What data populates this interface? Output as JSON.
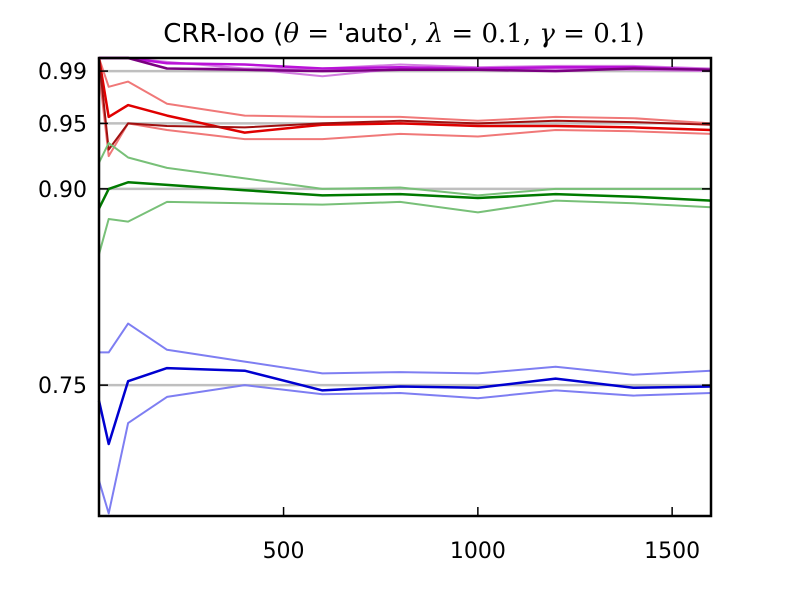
{
  "chart_data": {
    "type": "line",
    "title": {
      "prefix": "CRR-loo (",
      "theta": "θ",
      "eq1": " = ",
      "auto": "'auto'",
      "comma1": ", ",
      "lambda": "λ",
      "eq2": " = ",
      "lambda_value": "0.1",
      "comma2": ", ",
      "gamma": "γ",
      "eq3": " = ",
      "gamma_value": "0.1",
      "suffix": ")"
    },
    "xlabel": "",
    "ylabel": "",
    "xlim": [
      25,
      1600
    ],
    "ylim": [
      0.65,
      1.0
    ],
    "x_ticks": [
      500,
      1000,
      1500
    ],
    "y_ticks": [
      0.75,
      0.9,
      0.95,
      0.99
    ],
    "y_tick_labels": [
      "0.75",
      "0.90",
      "0.95",
      "0.99"
    ],
    "reference_lines": [
      0.75,
      0.9,
      0.95,
      0.99
    ],
    "colors": {
      "reference": "#bfbfbf",
      "magenta": "#ba11d8",
      "magenta_band": "#d27ce0",
      "purple": "#7a0080",
      "red": "#e00000",
      "red_band": "#f07878",
      "red_dark": "#a01010",
      "green": "#007a00",
      "green_band": "#78c078",
      "blue": "#0000d0",
      "blue_band": "#7e7ef2"
    },
    "x": [
      25,
      50,
      100,
      200,
      400,
      600,
      800,
      1000,
      1200,
      1400,
      1600
    ],
    "series": [
      {
        "color": "magenta_band",
        "width": 2,
        "values": [
          1.0,
          1.0,
          1.0,
          0.992,
          0.992,
          0.986,
          0.992,
          0.991,
          0.992,
          0.991,
          0.99
        ]
      },
      {
        "color": "magenta_band",
        "width": 2,
        "values": [
          1.0,
          1.0,
          1.0,
          0.997,
          0.992,
          0.992,
          0.995,
          0.993,
          0.994,
          0.994,
          0.992
        ]
      },
      {
        "color": "magenta",
        "width": 2.5,
        "values": [
          1.0,
          1.0,
          1.0,
          0.996,
          0.995,
          0.992,
          0.993,
          0.992,
          0.993,
          0.993,
          0.991
        ]
      },
      {
        "color": "purple",
        "width": 2.5,
        "values": [
          1.0,
          1.0,
          1.0,
          0.992,
          0.991,
          0.99,
          0.991,
          0.991,
          0.99,
          0.992,
          0.991
        ]
      },
      {
        "color": "red_band",
        "width": 2,
        "values": [
          1.0,
          0.978,
          0.982,
          0.965,
          0.956,
          0.955,
          0.955,
          0.952,
          0.955,
          0.954,
          0.95
        ]
      },
      {
        "color": "red_band",
        "width": 2,
        "values": [
          0.99,
          0.925,
          0.95,
          0.945,
          0.938,
          0.938,
          0.942,
          0.94,
          0.945,
          0.944,
          0.942
        ]
      },
      {
        "color": "red",
        "width": 2.5,
        "values": [
          1.0,
          0.955,
          0.964,
          0.956,
          0.943,
          0.949,
          0.95,
          0.948,
          0.948,
          0.947,
          0.945
        ]
      },
      {
        "color": "red_dark",
        "width": 2,
        "values": [
          1.0,
          0.93,
          0.95,
          0.948,
          0.947,
          0.95,
          0.952,
          0.95,
          0.952,
          0.951,
          0.949
        ]
      },
      {
        "color": "green_band",
        "width": 2,
        "values": [
          0.92,
          0.935,
          0.924,
          0.916,
          0.908,
          0.9,
          0.901,
          0.895,
          0.9,
          0.9,
          0.9
        ]
      },
      {
        "color": "green_band",
        "width": 2,
        "values": [
          0.85,
          0.877,
          0.875,
          0.89,
          0.889,
          0.888,
          0.89,
          0.882,
          0.891,
          0.889,
          0.886
        ]
      },
      {
        "color": "green",
        "width": 2.5,
        "values": [
          0.885,
          0.9,
          0.905,
          0.903,
          0.899,
          0.895,
          0.896,
          0.893,
          0.896,
          0.894,
          0.891
        ]
      },
      {
        "color": "blue_band",
        "width": 2,
        "values": [
          0.775,
          0.775,
          0.797,
          0.777,
          0.768,
          0.759,
          0.76,
          0.759,
          0.764,
          0.758,
          0.761
        ]
      },
      {
        "color": "blue_band",
        "width": 2,
        "values": [
          0.677,
          0.652,
          0.721,
          0.741,
          0.75,
          0.743,
          0.744,
          0.74,
          0.746,
          0.742,
          0.744
        ]
      },
      {
        "color": "blue",
        "width": 2.5,
        "values": [
          0.738,
          0.705,
          0.753,
          0.763,
          0.761,
          0.746,
          0.749,
          0.748,
          0.755,
          0.748,
          0.749
        ]
      }
    ]
  }
}
